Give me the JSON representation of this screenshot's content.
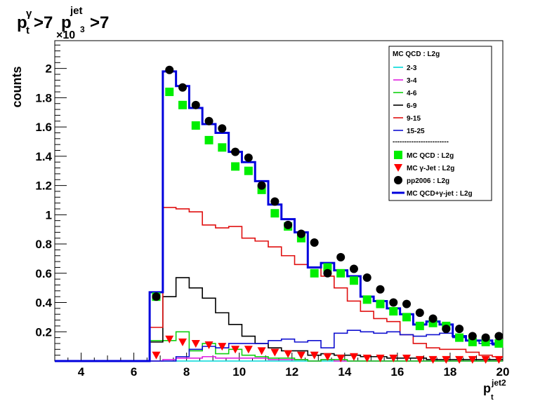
{
  "chart_data": {
    "type": "line",
    "title_parts": {
      "p": "p",
      "t": "t",
      "gamma": "γ",
      "gt1": ">7",
      "jet": "jet",
      "gt2": ">7"
    },
    "ylabel": "counts",
    "xlabel_main": "p",
    "xlabel_sub": "t",
    "xlabel_sup": "jet2",
    "y_exponent": "×10",
    "y_exponent_power": "3",
    "xlim": [
      3,
      20
    ],
    "ylim": [
      0,
      2.19
    ],
    "x_ticks": [
      4,
      6,
      8,
      10,
      12,
      14,
      16,
      18,
      20
    ],
    "y_ticks": [
      0.2,
      0.4,
      0.6,
      0.8,
      1,
      1.2,
      1.4,
      1.6,
      1.8,
      2
    ],
    "bin_edges": [
      6.6,
      7.1,
      7.6,
      8.1,
      8.6,
      9.1,
      9.6,
      10.1,
      10.6,
      11.1,
      11.6,
      12.1,
      12.6,
      13.1,
      13.6,
      14.1,
      14.6,
      15.1,
      15.6,
      16.1,
      16.6,
      17.1,
      17.6,
      18.1,
      18.6,
      19.1,
      19.6,
      20.1
    ],
    "legend_header": "MC QCD : L2g",
    "legend_separator": "------------------------",
    "lines": [
      {
        "name": "2-3",
        "color": "#00d8d8",
        "values": [
          0.0,
          0.0,
          0.0,
          0.0,
          0.0,
          0.0,
          0.0,
          0.0,
          0.0,
          0.0,
          0.0,
          0.0,
          0.0,
          0.0,
          0.0,
          0.0,
          0.0,
          0.0,
          0.0,
          0.0,
          0.0,
          0.0,
          0.0,
          0.0,
          0.0,
          0.0,
          0.0
        ]
      },
      {
        "name": "3-4",
        "color": "#e020e0",
        "values": [
          0.0,
          0.01,
          0.02,
          0.02,
          0.03,
          0.02,
          0.02,
          0.02,
          0.02,
          0.01,
          0.01,
          0.01,
          0.0,
          0.01,
          0.0,
          0.0,
          0.0,
          0.0,
          0.0,
          0.0,
          0.0,
          0.0,
          0.0,
          0.0,
          0.0,
          0.0,
          0.0
        ]
      },
      {
        "name": "4-6",
        "color": "#10d010",
        "values": [
          0.14,
          0.14,
          0.2,
          0.07,
          0.12,
          0.05,
          0.08,
          0.04,
          0.03,
          0.02,
          0.02,
          0.01,
          0.0,
          0.01,
          0.01,
          0.0,
          0.0,
          0.0,
          0.0,
          0.0,
          0.0,
          0.0,
          0.0,
          0.0,
          0.0,
          0.0,
          0.0
        ]
      },
      {
        "name": "6-9",
        "color": "#000000",
        "values": [
          0.13,
          0.44,
          0.57,
          0.5,
          0.43,
          0.33,
          0.25,
          0.17,
          0.12,
          0.09,
          0.07,
          0.07,
          0.04,
          0.05,
          0.04,
          0.04,
          0.03,
          0.03,
          0.02,
          0.02,
          0.02,
          0.01,
          0.01,
          0.01,
          0.01,
          0.01,
          0.01
        ]
      },
      {
        "name": "9-15",
        "color": "#e01010",
        "values": [
          0.23,
          1.05,
          1.04,
          1.02,
          0.93,
          0.91,
          0.92,
          0.84,
          0.82,
          0.78,
          0.72,
          0.66,
          0.64,
          0.58,
          0.5,
          0.41,
          0.34,
          0.29,
          0.27,
          0.18,
          0.12,
          0.09,
          0.08,
          0.08,
          0.06,
          0.04,
          0.03
        ]
      },
      {
        "name": "15-25",
        "color": "#1010d0",
        "values": [
          0.0,
          0.0,
          0.03,
          0.08,
          0.1,
          0.09,
          0.12,
          0.12,
          0.12,
          0.14,
          0.15,
          0.13,
          0.14,
          0.09,
          0.19,
          0.21,
          0.2,
          0.19,
          0.2,
          0.18,
          0.17,
          0.18,
          0.19,
          0.16,
          0.14,
          0.12,
          0.11
        ]
      }
    ],
    "markers": [
      {
        "name": "MC QCD : L2g",
        "shape": "square",
        "color": "#00ee00",
        "values": [
          0.44,
          1.84,
          1.75,
          1.61,
          1.51,
          1.46,
          1.33,
          1.3,
          1.17,
          1.01,
          0.92,
          0.84,
          0.6,
          0.64,
          0.6,
          0.55,
          0.42,
          0.39,
          0.34,
          0.3,
          0.24,
          0.26,
          0.24,
          0.16,
          0.13,
          0.13,
          0.12
        ]
      },
      {
        "name": "MC γ-Jet : L2g",
        "shape": "triangle-down",
        "color": "#ff0000",
        "values": [
          0.04,
          0.15,
          0.13,
          0.12,
          0.11,
          0.1,
          0.08,
          0.08,
          0.07,
          0.06,
          0.05,
          0.04,
          0.04,
          0.03,
          0.02,
          0.03,
          0.02,
          0.02,
          0.02,
          0.02,
          0.01,
          0.01,
          0.01,
          0.01,
          0.01,
          0.01,
          0.01
        ]
      },
      {
        "name": "pp2006 : L2g",
        "shape": "circle",
        "color": "#000000",
        "values": [
          0.44,
          1.99,
          1.87,
          1.75,
          1.64,
          1.59,
          1.43,
          1.39,
          1.2,
          1.09,
          0.93,
          0.87,
          0.81,
          0.6,
          0.71,
          0.63,
          0.57,
          0.49,
          0.4,
          0.39,
          0.33,
          0.29,
          0.22,
          0.22,
          0.17,
          0.16,
          0.17
        ]
      }
    ],
    "sum": {
      "name": "MC QCD+γ-jet : L2g",
      "color": "#0000dd",
      "values": [
        0.47,
        1.98,
        1.88,
        1.73,
        1.62,
        1.56,
        1.43,
        1.36,
        1.23,
        1.07,
        0.97,
        0.88,
        0.64,
        0.67,
        0.62,
        0.58,
        0.44,
        0.41,
        0.36,
        0.32,
        0.25,
        0.27,
        0.25,
        0.17,
        0.14,
        0.14,
        0.12
      ]
    }
  }
}
